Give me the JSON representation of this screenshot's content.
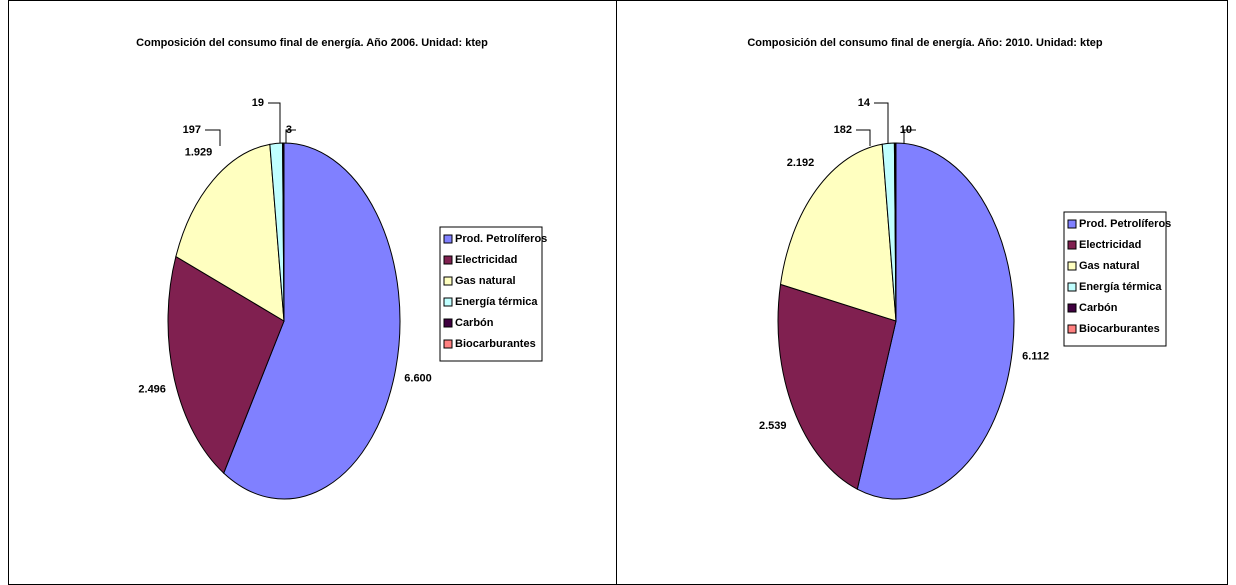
{
  "chart_data": [
    {
      "type": "pie",
      "title": "Composición del consumo final de energía. Año 2006. Unidad: ktep",
      "categories": [
        "Prod. Petrolíferos",
        "Electricidad",
        "Gas natural",
        "Energía térmica",
        "Carbón",
        "Biocarburantes"
      ],
      "values": [
        6600,
        2496,
        1929,
        197,
        19,
        3
      ],
      "value_labels": [
        "6.600",
        "2.496",
        "1.929",
        "197",
        "19",
        "3"
      ],
      "colors": [
        "#8080ff",
        "#802050",
        "#ffffc0",
        "#c0ffff",
        "#400040",
        "#ff8080"
      ],
      "legend": "right"
    },
    {
      "type": "pie",
      "title": "Composición del consumo final de energía. Año: 2010. Unidad: ktep",
      "categories": [
        "Prod. Petrolíferos",
        "Electricidad",
        "Gas natural",
        "Energía térmica",
        "Carbón",
        "Biocarburantes"
      ],
      "values": [
        6112,
        2539,
        2192,
        182,
        14,
        10
      ],
      "value_labels": [
        "6.112",
        "2.539",
        "2.192",
        "182",
        "14",
        "10"
      ],
      "colors": [
        "#8080ff",
        "#802050",
        "#ffffc0",
        "#c0ffff",
        "#400040",
        "#ff8080"
      ],
      "legend": "right"
    }
  ]
}
